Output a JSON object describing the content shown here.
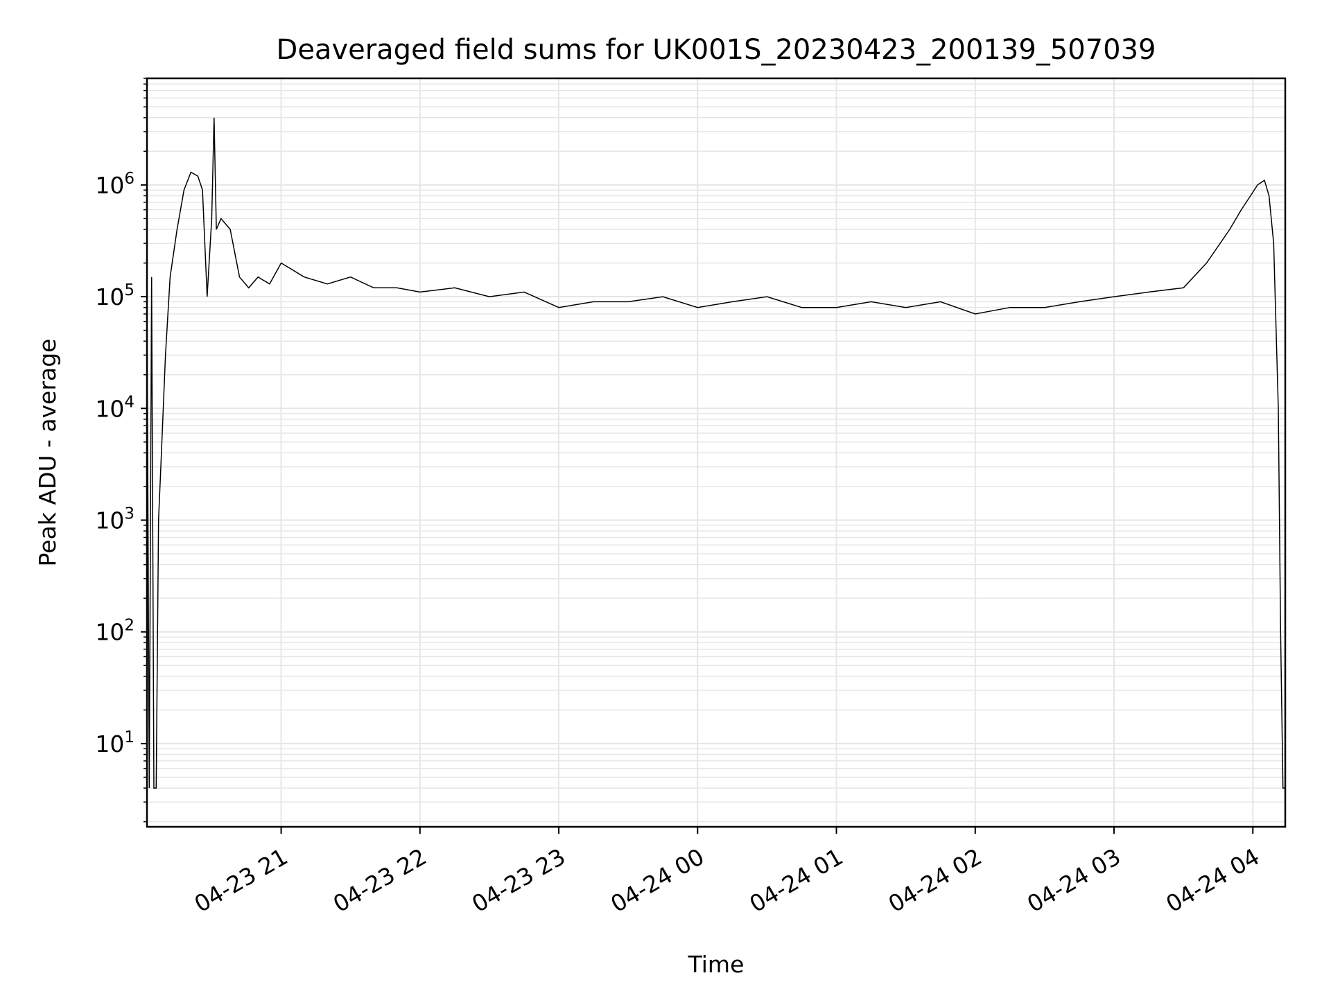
{
  "chart_data": {
    "type": "line",
    "title": "Deaveraged field sums for UK001S_20230423_200139_507039",
    "xlabel": "Time",
    "ylabel": "Peak ADU - average",
    "yscale": "log",
    "ylim": [
      1.8,
      9000000
    ],
    "xlim": [
      "2023-04-23 20:02",
      "2023-04-24 04:14"
    ],
    "grid": true,
    "legend": "none",
    "colors": {
      "line": "#000000",
      "grid": "#e6e6e6",
      "axes": "#000000",
      "background": "#ffffff"
    },
    "x_ticks": [
      {
        "label": "04-23 21",
        "value": "2023-04-23 21:00"
      },
      {
        "label": "04-23 22",
        "value": "2023-04-23 22:00"
      },
      {
        "label": "04-23 23",
        "value": "2023-04-23 23:00"
      },
      {
        "label": "04-24 00",
        "value": "2023-04-24 00:00"
      },
      {
        "label": "04-24 01",
        "value": "2023-04-24 01:00"
      },
      {
        "label": "04-24 02",
        "value": "2023-04-24 02:00"
      },
      {
        "label": "04-24 03",
        "value": "2023-04-24 03:00"
      },
      {
        "label": "04-24 04",
        "value": "2023-04-24 04:00"
      }
    ],
    "y_ticks": [
      {
        "base": "10",
        "exp": "1",
        "value": 10
      },
      {
        "base": "10",
        "exp": "2",
        "value": 100
      },
      {
        "base": "10",
        "exp": "3",
        "value": 1000
      },
      {
        "base": "10",
        "exp": "4",
        "value": 10000
      },
      {
        "base": "10",
        "exp": "5",
        "value": 100000
      },
      {
        "base": "10",
        "exp": "6",
        "value": 1000000
      }
    ],
    "series": [
      {
        "values_x": [
          "2023-04-23 20:02",
          "2023-04-23 20:03",
          "2023-04-23 20:04",
          "2023-04-23 20:05",
          "2023-04-23 20:06",
          "2023-04-23 20:07",
          "2023-04-23 20:08",
          "2023-04-23 20:10",
          "2023-04-23 20:12",
          "2023-04-23 20:15",
          "2023-04-23 20:18",
          "2023-04-23 20:21",
          "2023-04-23 20:24",
          "2023-04-23 20:26",
          "2023-04-23 20:28",
          "2023-04-23 20:30",
          "2023-04-23 20:31",
          "2023-04-23 20:32",
          "2023-04-23 20:34",
          "2023-04-23 20:38",
          "2023-04-23 20:42",
          "2023-04-23 20:46",
          "2023-04-23 20:50",
          "2023-04-23 20:55",
          "2023-04-23 21:00",
          "2023-04-23 21:10",
          "2023-04-23 21:20",
          "2023-04-23 21:30",
          "2023-04-23 21:40",
          "2023-04-23 21:50",
          "2023-04-23 22:00",
          "2023-04-23 22:15",
          "2023-04-23 22:30",
          "2023-04-23 22:45",
          "2023-04-23 23:00",
          "2023-04-23 23:15",
          "2023-04-23 23:30",
          "2023-04-23 23:45",
          "2023-04-24 00:00",
          "2023-04-24 00:15",
          "2023-04-24 00:30",
          "2023-04-24 00:45",
          "2023-04-24 01:00",
          "2023-04-24 01:15",
          "2023-04-24 01:30",
          "2023-04-24 01:45",
          "2023-04-24 02:00",
          "2023-04-24 02:15",
          "2023-04-24 02:30",
          "2023-04-24 02:45",
          "2023-04-24 03:00",
          "2023-04-24 03:15",
          "2023-04-24 03:30",
          "2023-04-24 03:40",
          "2023-04-24 03:50",
          "2023-04-24 03:55",
          "2023-04-24 03:59",
          "2023-04-24 04:02",
          "2023-04-24 04:05",
          "2023-04-24 04:07",
          "2023-04-24 04:09",
          "2023-04-24 04:11",
          "2023-04-24 04:12",
          "2023-04-24 04:13",
          "2023-04-24 04:14"
        ],
        "values_y": [
          100000,
          4,
          150000,
          4,
          4,
          1000,
          3000,
          30000,
          150000,
          400000,
          900000,
          1300000,
          1200000,
          900000,
          100000,
          500000,
          4000000,
          400000,
          500000,
          400000,
          150000,
          120000,
          150000,
          130000,
          200000,
          150000,
          130000,
          150000,
          120000,
          120000,
          110000,
          120000,
          100000,
          110000,
          80000,
          90000,
          90000,
          100000,
          80000,
          90000,
          100000,
          80000,
          80000,
          90000,
          80000,
          90000,
          70000,
          80000,
          80000,
          90000,
          100000,
          110000,
          120000,
          200000,
          400000,
          600000,
          800000,
          1000000,
          1100000,
          800000,
          300000,
          10000,
          100,
          4,
          4
        ]
      }
    ]
  }
}
